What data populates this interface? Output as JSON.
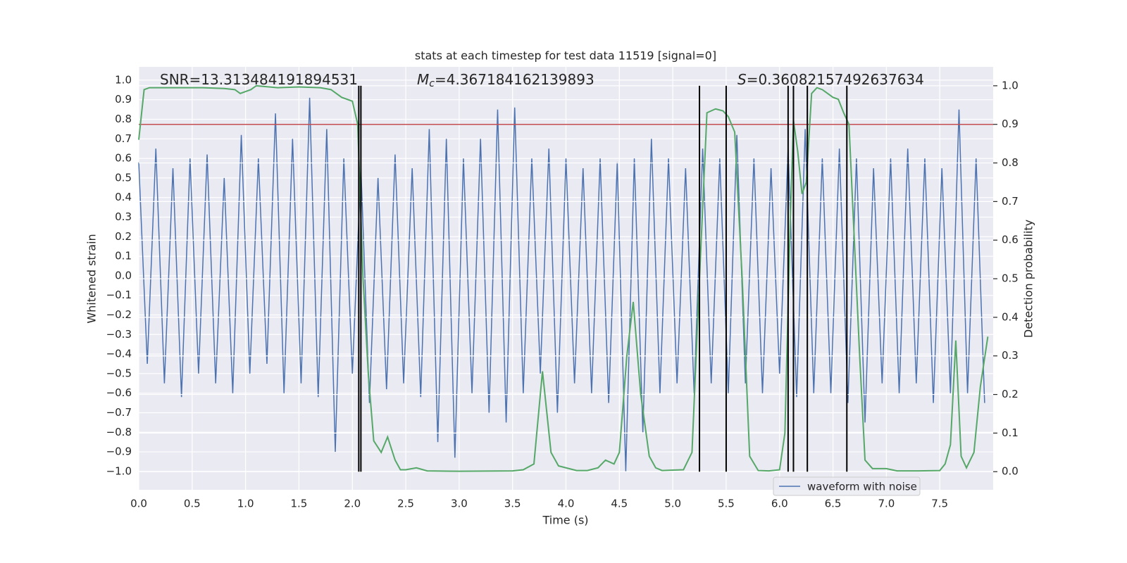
{
  "chart_data": {
    "type": "line",
    "title": "stats at each timestep for test data 11519 [signal=0]",
    "xlabel": "Time (s)",
    "ylabel": "Whitened strain",
    "y2label": "Detection probability",
    "annotations": [
      {
        "text": "SNR=13.313484191894531"
      },
      {
        "symbol": "M",
        "subscript": "c",
        "text": "=4.367184162139893"
      },
      {
        "symbol": "S",
        "text": "=0.36082157492637634"
      }
    ],
    "xlim": [
      0,
      8.0
    ],
    "ylim": [
      -1.094,
      1.068
    ],
    "y2lim": [
      -0.047,
      1.049
    ],
    "xticks": [
      {
        "value": 0,
        "label": "0.0"
      },
      0.5,
      {
        "value": 1,
        "label": "1.0"
      },
      1.5,
      {
        "value": 2,
        "label": "2.0"
      },
      2.5,
      {
        "value": 3,
        "label": "3.0"
      },
      3.5,
      {
        "value": 4,
        "label": "4.0"
      },
      4.5,
      {
        "value": 5,
        "label": "5.0"
      },
      5.5,
      {
        "value": 6,
        "label": "6.0"
      },
      6.5,
      {
        "value": 7,
        "label": "7.0"
      },
      7.5
    ],
    "yticks": [
      {
        "value": -1,
        "label": "−1.0"
      },
      {
        "value": -0.9,
        "label": "−0.9"
      },
      {
        "value": -0.8,
        "label": "−0.8"
      },
      {
        "value": -0.7,
        "label": "−0.7"
      },
      {
        "value": -0.6,
        "label": "−0.6"
      },
      {
        "value": -0.5,
        "label": "−0.5"
      },
      {
        "value": -0.4,
        "label": "−0.4"
      },
      {
        "value": -0.3,
        "label": "−0.3"
      },
      {
        "value": -0.2,
        "label": "−0.2"
      },
      {
        "value": -0.1,
        "label": "−0.1"
      },
      {
        "value": 0,
        "label": "0.0"
      },
      0.1,
      0.2,
      0.3,
      0.4,
      0.5,
      0.6,
      0.7,
      0.8,
      0.9,
      {
        "value": 1,
        "label": "1.0"
      }
    ],
    "y2ticks": [
      {
        "value": 0,
        "label": "0.0"
      },
      0.1,
      0.2,
      0.3,
      0.4,
      0.5,
      0.6,
      0.7,
      0.8,
      0.9,
      {
        "value": 1,
        "label": "1.0"
      }
    ],
    "grid": true,
    "legend": "lower right",
    "series": [
      {
        "name": "waveform with noise",
        "color": "#4c72b0",
        "x": [
          0,
          0.08,
          0.16,
          0.24,
          0.32,
          0.4,
          0.48,
          0.56,
          0.64,
          0.72,
          0.8,
          0.88,
          0.96,
          1.04,
          1.12,
          1.2,
          1.28,
          1.36,
          1.44,
          1.52,
          1.6,
          1.68,
          1.76,
          1.84,
          1.92,
          2.0,
          2.08,
          2.16,
          2.24,
          2.32,
          2.4,
          2.48,
          2.56,
          2.64,
          2.72,
          2.8,
          2.88,
          2.96,
          3.04,
          3.12,
          3.2,
          3.28,
          3.36,
          3.44,
          3.52,
          3.6,
          3.68,
          3.76,
          3.84,
          3.92,
          4.0,
          4.08,
          4.16,
          4.24,
          4.32,
          4.4,
          4.48,
          4.56,
          4.64,
          4.72,
          4.8,
          4.88,
          4.96,
          5.04,
          5.12,
          5.2,
          5.28,
          5.36,
          5.44,
          5.52,
          5.6,
          5.68,
          5.76,
          5.84,
          5.92,
          6.0,
          6.08,
          6.16,
          6.24,
          6.32,
          6.4,
          6.48,
          6.56,
          6.64,
          6.72,
          6.8,
          6.88,
          6.96,
          7.04,
          7.12,
          7.2,
          7.28,
          7.36,
          7.44,
          7.52,
          7.6,
          7.68,
          7.76,
          7.84,
          7.92
        ],
        "values": [
          0.58,
          -0.45,
          0.65,
          -0.55,
          0.55,
          -0.62,
          0.6,
          -0.5,
          0.62,
          -0.55,
          0.5,
          -0.6,
          0.72,
          -0.5,
          0.6,
          -0.45,
          0.83,
          -0.6,
          0.7,
          -0.55,
          0.91,
          -0.62,
          0.75,
          -0.9,
          0.6,
          -0.5,
          0.55,
          -0.65,
          0.5,
          -0.58,
          0.62,
          -0.55,
          0.55,
          -0.62,
          0.75,
          -0.85,
          0.7,
          -0.93,
          0.6,
          -0.6,
          0.7,
          -0.7,
          0.85,
          -0.75,
          0.86,
          -0.6,
          0.6,
          -0.5,
          0.65,
          -0.7,
          0.6,
          -0.55,
          0.55,
          -0.6,
          0.6,
          -0.65,
          0.58,
          -1.0,
          0.6,
          -0.8,
          0.7,
          -0.6,
          0.6,
          -0.55,
          0.55,
          -0.6,
          0.65,
          -0.55,
          0.6,
          -0.6,
          0.72,
          -0.55,
          0.6,
          -0.6,
          0.55,
          -0.5,
          0.65,
          -0.62,
          0.75,
          -0.6,
          0.6,
          -0.6,
          0.65,
          -0.65,
          0.6,
          -0.75,
          0.55,
          -0.55,
          0.6,
          -0.6,
          0.65,
          -0.55,
          0.6,
          -0.65,
          0.55,
          -0.6,
          0.85,
          -0.6,
          0.6,
          -0.65
        ]
      },
      {
        "color": "#55a868",
        "axis": "y2",
        "x": [
          0,
          0.05,
          0.1,
          0.2,
          0.4,
          0.6,
          0.8,
          0.9,
          0.95,
          1.0,
          1.05,
          1.1,
          1.3,
          1.5,
          1.7,
          1.8,
          1.9,
          2.0,
          2.05,
          2.1,
          2.15,
          2.2,
          2.27,
          2.33,
          2.4,
          2.45,
          2.5,
          2.6,
          2.7,
          3.0,
          3.5,
          3.6,
          3.7,
          3.78,
          3.86,
          3.93,
          4.0,
          4.1,
          4.2,
          4.3,
          4.37,
          4.45,
          4.5,
          4.57,
          4.63,
          4.7,
          4.78,
          4.84,
          4.9,
          5.0,
          5.1,
          5.18,
          5.25,
          5.32,
          5.4,
          5.47,
          5.52,
          5.58,
          5.65,
          5.72,
          5.8,
          5.9,
          6.0,
          6.05,
          6.1,
          6.13,
          6.17,
          6.21,
          6.25,
          6.3,
          6.35,
          6.4,
          6.45,
          6.5,
          6.55,
          6.6,
          6.65,
          6.7,
          6.75,
          6.8,
          6.87,
          7.0,
          7.1,
          7.3,
          7.5,
          7.55,
          7.6,
          7.65,
          7.7,
          7.75,
          7.82,
          7.88,
          7.95
        ],
        "values": [
          0.86,
          0.99,
          0.995,
          0.995,
          0.995,
          0.995,
          0.993,
          0.99,
          0.98,
          0.985,
          0.99,
          1.0,
          0.995,
          0.997,
          0.995,
          0.99,
          0.97,
          0.96,
          0.9,
          0.5,
          0.25,
          0.08,
          0.05,
          0.09,
          0.03,
          0.005,
          0.005,
          0.01,
          0.002,
          0.001,
          0.002,
          0.005,
          0.02,
          0.26,
          0.05,
          0.015,
          0.01,
          0.003,
          0.003,
          0.01,
          0.03,
          0.02,
          0.05,
          0.3,
          0.44,
          0.2,
          0.04,
          0.01,
          0.003,
          0.004,
          0.005,
          0.05,
          0.5,
          0.93,
          0.94,
          0.935,
          0.92,
          0.88,
          0.5,
          0.04,
          0.003,
          0.002,
          0.005,
          0.1,
          0.65,
          0.91,
          0.83,
          0.72,
          0.75,
          0.98,
          0.995,
          0.99,
          0.98,
          0.97,
          0.965,
          0.93,
          0.9,
          0.6,
          0.3,
          0.03,
          0.008,
          0.008,
          0.002,
          0.002,
          0.003,
          0.02,
          0.07,
          0.34,
          0.04,
          0.01,
          0.05,
          0.22,
          0.35
        ]
      }
    ],
    "vlines": {
      "x": [
        2.06,
        2.08,
        5.25,
        5.5,
        6.08,
        6.13,
        6.26,
        6.63
      ],
      "ymin": 0,
      "ymax": 1,
      "axis": "y2",
      "color": "#000000"
    },
    "hline": {
      "y": 0.9,
      "axis": "y2",
      "color": "#c44e52"
    }
  }
}
